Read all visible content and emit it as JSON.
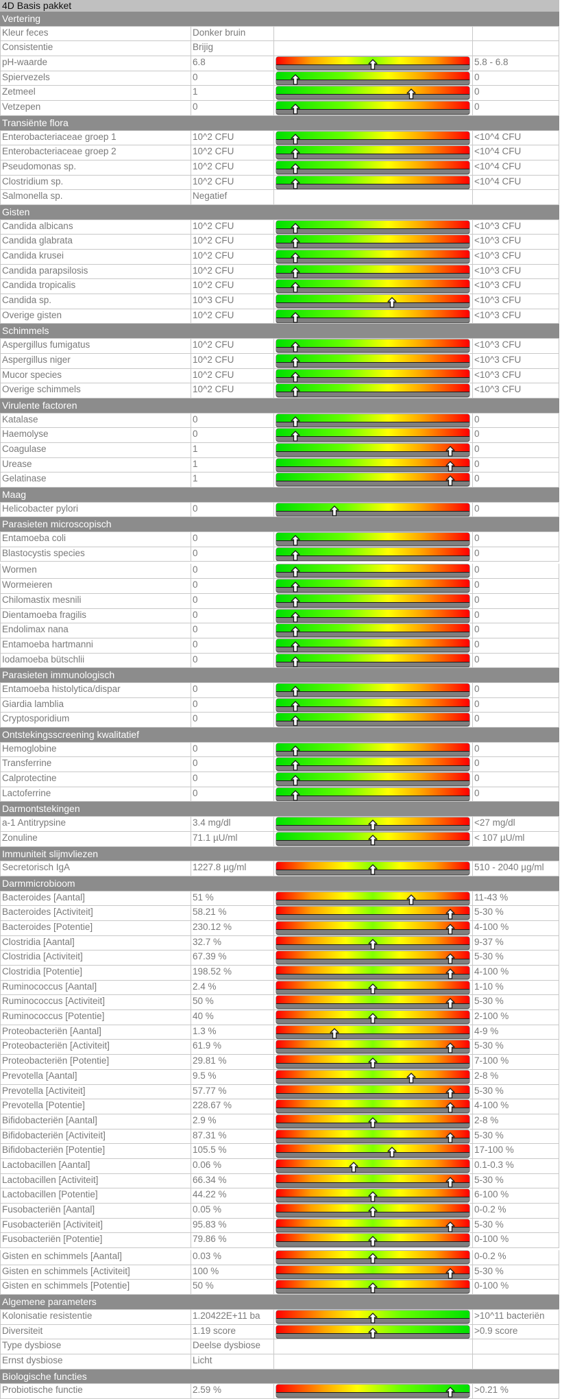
{
  "title": "4D Basis pakket",
  "sections": [
    {
      "name": "Vertering",
      "rows": [
        {
          "label": "Kleur feces",
          "value": "Donker bruin",
          "range": "",
          "bar": null
        },
        {
          "label": "Consistentie",
          "value": "Brijig",
          "range": "",
          "bar": null
        },
        {
          "label": "pH-waarde",
          "value": "6.8",
          "range": "5.8 - 6.8",
          "bar": {
            "scale": "rygyr",
            "marker": 0.5
          }
        },
        {
          "label": "Spiervezels",
          "value": "0",
          "range": "0",
          "bar": {
            "scale": "gyr",
            "marker": 0.1
          }
        },
        {
          "label": "Zetmeel",
          "value": "1",
          "range": "0",
          "bar": {
            "scale": "gyr",
            "marker": 0.7
          }
        },
        {
          "label": "Vetzepen",
          "value": "0",
          "range": "0",
          "bar": {
            "scale": "gyr",
            "marker": 0.1
          }
        }
      ]
    },
    {
      "name": "Transiënte flora",
      "rows": [
        {
          "label": "Enterobacteriaceae groep 1",
          "value": "10^2 CFU",
          "range": "<10^4 CFU",
          "bar": {
            "scale": "gyr",
            "marker": 0.1
          }
        },
        {
          "label": "Enterobacteriaceae groep 2",
          "value": "10^2 CFU",
          "range": "<10^4 CFU",
          "bar": {
            "scale": "gyr",
            "marker": 0.1
          }
        },
        {
          "label": "Pseudomonas sp.",
          "value": "10^2 CFU",
          "range": "<10^4 CFU",
          "bar": {
            "scale": "gyr",
            "marker": 0.1
          }
        },
        {
          "label": "Clostridium sp.",
          "value": "10^2 CFU",
          "range": "<10^4 CFU",
          "bar": {
            "scale": "gyr",
            "marker": 0.1
          }
        },
        {
          "label": "Salmonella sp.",
          "value": "Negatief",
          "range": "",
          "bar": null
        }
      ]
    },
    {
      "name": "Gisten",
      "rows": [
        {
          "label": "Candida albicans",
          "value": "10^2 CFU",
          "range": "<10^3 CFU",
          "bar": {
            "scale": "gyr",
            "marker": 0.1
          }
        },
        {
          "label": "Candida glabrata",
          "value": "10^2 CFU",
          "range": "<10^3 CFU",
          "bar": {
            "scale": "gyr",
            "marker": 0.1
          }
        },
        {
          "label": "Candida krusei",
          "value": "10^2 CFU",
          "range": "<10^3 CFU",
          "bar": {
            "scale": "gyr",
            "marker": 0.1
          }
        },
        {
          "label": "Candida parapsilosis",
          "value": "10^2 CFU",
          "range": "<10^3 CFU",
          "bar": {
            "scale": "gyr",
            "marker": 0.1
          }
        },
        {
          "label": "Candida tropicalis",
          "value": "10^2 CFU",
          "range": "<10^3 CFU",
          "bar": {
            "scale": "gyr",
            "marker": 0.1
          }
        },
        {
          "label": "Candida sp.",
          "value": "10^3 CFU",
          "range": "<10^3 CFU",
          "bar": {
            "scale": "gyr",
            "marker": 0.6
          }
        },
        {
          "label": "Overige gisten",
          "value": "10^2 CFU",
          "range": "<10^3 CFU",
          "bar": {
            "scale": "gyr",
            "marker": 0.1
          }
        }
      ]
    },
    {
      "name": "Schimmels",
      "rows": [
        {
          "label": "Aspergillus fumigatus",
          "value": "10^2 CFU",
          "range": "<10^3 CFU",
          "bar": {
            "scale": "gyr",
            "marker": 0.1
          }
        },
        {
          "label": "Aspergillus niger",
          "value": "10^2 CFU",
          "range": "<10^3 CFU",
          "bar": {
            "scale": "gyr",
            "marker": 0.1
          }
        },
        {
          "label": "Mucor species",
          "value": "10^2 CFU",
          "range": "<10^3 CFU",
          "bar": {
            "scale": "gyr",
            "marker": 0.1
          }
        },
        {
          "label": "Overige schimmels",
          "value": "10^2 CFU",
          "range": "<10^3 CFU",
          "bar": {
            "scale": "gyr",
            "marker": 0.1
          }
        }
      ]
    },
    {
      "name": "Virulente factoren",
      "rows": [
        {
          "label": "Katalase",
          "value": "0",
          "range": "0",
          "bar": {
            "scale": "gyr",
            "marker": 0.1
          }
        },
        {
          "label": "Haemolyse",
          "value": "0",
          "range": "0",
          "bar": {
            "scale": "gyr",
            "marker": 0.1
          }
        },
        {
          "label": "Coagulase",
          "value": "1",
          "range": "0",
          "bar": {
            "scale": "gyr",
            "marker": 0.9
          }
        },
        {
          "label": "Urease",
          "value": "1",
          "range": "0",
          "bar": {
            "scale": "gyr",
            "marker": 0.9
          }
        },
        {
          "label": "Gelatinase",
          "value": "1",
          "range": "0",
          "bar": {
            "scale": "gyr",
            "marker": 0.9
          }
        }
      ]
    },
    {
      "name": "Maag",
      "rows": [
        {
          "label": "Helicobacter pylori",
          "value": "0",
          "range": "0",
          "bar": {
            "scale": "gyr",
            "marker": 0.3
          }
        }
      ]
    },
    {
      "name": "Parasieten microscopisch",
      "rows": [
        {
          "label": "Entamoeba coli",
          "value": "0",
          "range": "0",
          "bar": {
            "scale": "gyr",
            "marker": 0.1
          }
        },
        {
          "label": "Blastocystis species",
          "value": "0",
          "range": "0",
          "bar": {
            "scale": "gyr",
            "marker": 0.1
          }
        },
        {
          "gap": true
        },
        {
          "label": "Wormen",
          "value": "0",
          "range": "0",
          "bar": {
            "scale": "gyr",
            "marker": 0.1
          }
        },
        {
          "label": "Wormeieren",
          "value": "0",
          "range": "0",
          "bar": {
            "scale": "gyr",
            "marker": 0.1
          }
        },
        {
          "label": "Chilomastix mesnili",
          "value": "0",
          "range": "0",
          "bar": {
            "scale": "gyr",
            "marker": 0.1
          }
        },
        {
          "label": "Dientamoeba fragilis",
          "value": "0",
          "range": "0",
          "bar": {
            "scale": "gyr",
            "marker": 0.1
          }
        },
        {
          "label": "Endolimax nana",
          "value": "0",
          "range": "0",
          "bar": {
            "scale": "gyr",
            "marker": 0.1
          }
        },
        {
          "label": "Entamoeba hartmanni",
          "value": "0",
          "range": "0",
          "bar": {
            "scale": "gyr",
            "marker": 0.1
          }
        },
        {
          "label": "Iodamoeba bütschlii",
          "value": "0",
          "range": "0",
          "bar": {
            "scale": "gyr",
            "marker": 0.1
          }
        }
      ]
    },
    {
      "name": "Parasieten immunologisch",
      "rows": [
        {
          "label": "Entamoeba histolytica/dispar",
          "value": "0",
          "range": "0",
          "bar": {
            "scale": "gyr",
            "marker": 0.1
          }
        },
        {
          "label": "Giardia lamblia",
          "value": "0",
          "range": "0",
          "bar": {
            "scale": "gyr",
            "marker": 0.1
          }
        },
        {
          "label": "Cryptosporidium",
          "value": "0",
          "range": "0",
          "bar": {
            "scale": "gyr",
            "marker": 0.1
          }
        }
      ]
    },
    {
      "name": "Ontstekingsscreening kwalitatief",
      "rows": [
        {
          "label": "Hemoglobine",
          "value": "0",
          "range": "0",
          "bar": {
            "scale": "gyr",
            "marker": 0.1
          }
        },
        {
          "label": "Transferrine",
          "value": "0",
          "range": "0",
          "bar": {
            "scale": "gyr",
            "marker": 0.1
          }
        },
        {
          "label": "Calprotectine",
          "value": "0",
          "range": "0",
          "bar": {
            "scale": "gyr",
            "marker": 0.1
          }
        },
        {
          "label": "Lactoferrine",
          "value": "0",
          "range": "0",
          "bar": {
            "scale": "gyr",
            "marker": 0.1
          }
        }
      ]
    },
    {
      "name": "Darmontstekingen",
      "rows": [
        {
          "label": "a-1 Antitrypsine",
          "value": "3.4 mg/dl",
          "range": "<27 mg/dl",
          "bar": {
            "scale": "gyr",
            "marker": 0.5
          }
        },
        {
          "label": "Zonuline",
          "value": "71.1 µU/ml",
          "range": "< 107 µU/ml",
          "bar": {
            "scale": "gyr",
            "marker": 0.5
          }
        }
      ]
    },
    {
      "name": "Immuniteit slijmvliezen",
      "rows": [
        {
          "label": "Secretorisch IgA",
          "value": "1227.8 µg/ml",
          "range": "510 - 2040 µg/ml",
          "bar": {
            "scale": "rygyr",
            "marker": 0.5
          }
        }
      ]
    },
    {
      "name": "Darmmicrobioom",
      "rows": [
        {
          "label": "Bacteroides [Aantal]",
          "value": "51 %",
          "range": "11-43 %",
          "bar": {
            "scale": "rygyr",
            "marker": 0.7
          }
        },
        {
          "label": "Bacteroides [Activiteit]",
          "value": "58.21 %",
          "range": "5-30 %",
          "bar": {
            "scale": "rygyr",
            "marker": 0.9
          }
        },
        {
          "label": "Bacteroides [Potentie]",
          "value": "230.12 %",
          "range": "4-100 %",
          "bar": {
            "scale": "rygyr",
            "marker": 0.9
          }
        },
        {
          "label": "Clostridia [Aantal]",
          "value": "32.7 %",
          "range": "9-37 %",
          "bar": {
            "scale": "rygyr",
            "marker": 0.5
          }
        },
        {
          "label": "Clostridia [Activiteit]",
          "value": "67.39 %",
          "range": "5-30 %",
          "bar": {
            "scale": "rygyr",
            "marker": 0.9
          }
        },
        {
          "label": "Clostridia [Potentie]",
          "value": "198.52 %",
          "range": "4-100 %",
          "bar": {
            "scale": "rygyr",
            "marker": 0.9
          }
        },
        {
          "label": "Ruminococcus [Aantal]",
          "value": "2.4 %",
          "range": "1-10 %",
          "bar": {
            "scale": "rygyr",
            "marker": 0.5
          }
        },
        {
          "label": "Ruminococcus [Activiteit]",
          "value": "50 %",
          "range": "5-30 %",
          "bar": {
            "scale": "rygyr",
            "marker": 0.9
          }
        },
        {
          "label": "Ruminococcus [Potentie]",
          "value": "40 %",
          "range": "2-100 %",
          "bar": {
            "scale": "rygyr",
            "marker": 0.5
          }
        },
        {
          "label": "Proteobacteriën [Aantal]",
          "value": "1.3 %",
          "range": "4-9 %",
          "bar": {
            "scale": "rygyr",
            "marker": 0.3
          }
        },
        {
          "label": "Proteobacteriën [Activiteit]",
          "value": "61.9 %",
          "range": "5-30 %",
          "bar": {
            "scale": "rygyr",
            "marker": 0.9
          }
        },
        {
          "label": "Proteobacteriën [Potentie]",
          "value": "29.81 %",
          "range": "7-100 %",
          "bar": {
            "scale": "rygyr",
            "marker": 0.5
          }
        },
        {
          "label": "Prevotella [Aantal]",
          "value": "9.5 %",
          "range": "2-8 %",
          "bar": {
            "scale": "rygyr",
            "marker": 0.7
          }
        },
        {
          "label": "Prevotella [Activiteit]",
          "value": "57.77 %",
          "range": "5-30 %",
          "bar": {
            "scale": "rygyr",
            "marker": 0.9
          }
        },
        {
          "label": "Prevotella [Potentie]",
          "value": "228.67 %",
          "range": "4-100 %",
          "bar": {
            "scale": "rygyr",
            "marker": 0.9
          }
        },
        {
          "label": "Bifidobacteriën [Aantal]",
          "value": "2.9 %",
          "range": "2-8 %",
          "bar": {
            "scale": "rygyr",
            "marker": 0.5
          }
        },
        {
          "label": "Bifidobacteriën [Activiteit]",
          "value": "87.31 %",
          "range": "5-30 %",
          "bar": {
            "scale": "rygyr",
            "marker": 0.9
          }
        },
        {
          "label": "Bifidobacteriën [Potentie]",
          "value": "105.5 %",
          "range": "17-100 %",
          "bar": {
            "scale": "rygyr",
            "marker": 0.6
          }
        },
        {
          "label": "Lactobacillen [Aantal]",
          "value": "0.06 %",
          "range": "0.1-0.3 %",
          "bar": {
            "scale": "rygyr",
            "marker": 0.4
          }
        },
        {
          "label": "Lactobacillen [Activiteit]",
          "value": "66.34 %",
          "range": "5-30 %",
          "bar": {
            "scale": "rygyr",
            "marker": 0.9
          }
        },
        {
          "label": "Lactobacillen [Potentie]",
          "value": "44.22 %",
          "range": "6-100 %",
          "bar": {
            "scale": "rygyr",
            "marker": 0.5
          }
        },
        {
          "label": "Fusobacteriën [Aantal]",
          "value": "0.05 %",
          "range": "0-0.2 %",
          "bar": {
            "scale": "rygyr",
            "marker": 0.5
          }
        },
        {
          "label": "Fusobacteriën [Activiteit]",
          "value": "95.83 %",
          "range": "5-30 %",
          "bar": {
            "scale": "rygyr",
            "marker": 0.9
          }
        },
        {
          "label": "Fusobacteriën [Potentie]",
          "value": "79.86 %",
          "range": "0-100 %",
          "bar": {
            "scale": "rygyr",
            "marker": 0.5
          }
        },
        {
          "gap": true
        },
        {
          "label": "Gisten en schimmels [Aantal]",
          "value": "0.03 %",
          "range": "0-0.2 %",
          "bar": {
            "scale": "rygyr",
            "marker": 0.5
          }
        },
        {
          "label": "Gisten en schimmels [Activiteit]",
          "value": "100 %",
          "range": "5-30 %",
          "bar": {
            "scale": "rygyr",
            "marker": 0.9
          }
        },
        {
          "label": "Gisten en schimmels [Potentie]",
          "value": "50 %",
          "range": "0-100 %",
          "bar": {
            "scale": "rygyr",
            "marker": 0.5
          }
        }
      ]
    },
    {
      "name": "Algemene parameters",
      "rows": [
        {
          "label": "Kolonisatie resistentie",
          "value": "1.20422E+11 ba",
          "range": ">10^11 bacteriën",
          "bar": {
            "scale": "ryg",
            "marker": 0.5
          }
        },
        {
          "label": "Diversiteit",
          "value": "1.19 score",
          "range": ">0.9 score",
          "bar": {
            "scale": "ryg",
            "marker": 0.5
          }
        },
        {
          "label": "Type dysbiose",
          "value": "Deelse dysbiose",
          "range": "",
          "bar": null
        },
        {
          "label": "Ernst dysbiose",
          "value": "Licht",
          "range": "",
          "bar": null
        }
      ]
    },
    {
      "name": "Biologische functies",
      "rows": [
        {
          "label": "Probiotische functie",
          "value": "2.59 %",
          "range": ">0.21 %",
          "bar": {
            "scale": "ryg",
            "marker": 0.9
          }
        }
      ]
    }
  ]
}
